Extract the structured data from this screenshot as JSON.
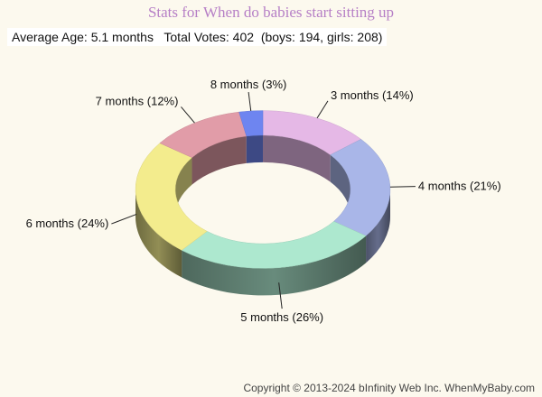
{
  "title": "Stats for When do babies start sitting up",
  "stats": {
    "average": "Average Age: 5.1 months",
    "total": "Total Votes: 402",
    "split": "(boys: 194, girls: 208)"
  },
  "footer": "Copyright © 2013-2024 bInfinity Web Inc.  WhenMyBaby.com",
  "chart_data": {
    "type": "pie",
    "style": "3d-donut",
    "slices": [
      {
        "label": "3 months (14%)",
        "category": "3 months",
        "value": 14,
        "color": "#e5b8e6"
      },
      {
        "label": "4 months (21%)",
        "category": "4 months",
        "value": 21,
        "color": "#a9b6e8"
      },
      {
        "label": "5 months (26%)",
        "category": "5 months",
        "value": 26,
        "color": "#ade8cf"
      },
      {
        "label": "6 months (24%)",
        "category": "6 months",
        "value": 24,
        "color": "#f3ec8d"
      },
      {
        "label": "7 months (12%)",
        "category": "7 months",
        "value": 12,
        "color": "#e19ca8"
      },
      {
        "label": "8 months (3%)",
        "category": "8 months",
        "value": 3,
        "color": "#6e85f0"
      }
    ]
  }
}
